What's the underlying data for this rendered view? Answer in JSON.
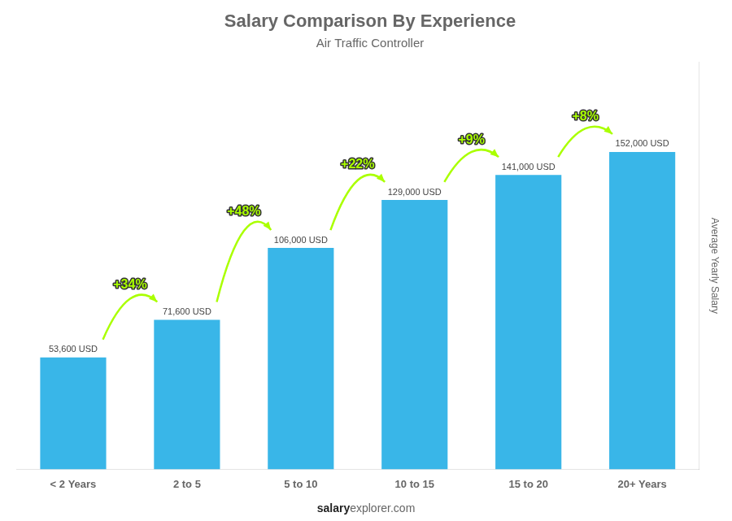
{
  "chart_data": {
    "type": "bar",
    "title": "Salary Comparison By Experience",
    "subtitle": "Air Traffic Controller",
    "ylabel": "Average Yearly Salary",
    "categories": [
      "< 2 Years",
      "2 to 5",
      "5 to 10",
      "10 to 15",
      "15 to 20",
      "20+ Years"
    ],
    "values": [
      53600,
      71600,
      106000,
      129000,
      141000,
      152000
    ],
    "value_labels": [
      "53,600 USD",
      "71,600 USD",
      "106,000 USD",
      "129,000 USD",
      "141,000 USD",
      "152,000 USD"
    ],
    "color": "#39b6e8",
    "annotations": [
      {
        "text": "+34%",
        "color": "#aaff00"
      },
      {
        "text": "+48%",
        "color": "#aaff00"
      },
      {
        "text": "+22%",
        "color": "#aaff00"
      },
      {
        "text": "+9%",
        "color": "#aaff00"
      },
      {
        "text": "+8%",
        "color": "#aaff00"
      }
    ],
    "footer": [
      "salary",
      "explorer.com"
    ],
    "ylim": [
      0,
      195000
    ],
    "grid": false,
    "data_labels": true,
    "tick_labels": "x"
  }
}
